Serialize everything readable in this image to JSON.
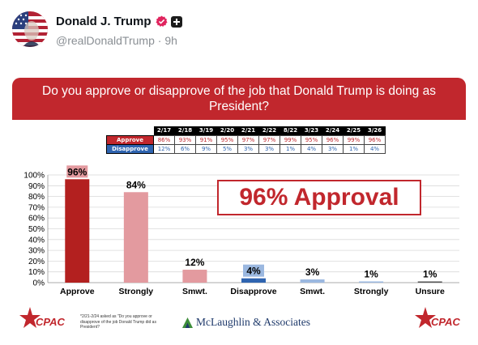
{
  "post": {
    "display_name": "Donald J. Trump",
    "handle": "@realDonaldTrump",
    "separator": "·",
    "time": "9h"
  },
  "poll": {
    "question": "Do you approve or disapprove of the job that Donald Trump is doing as President?",
    "callout": "96% Approval",
    "footnote": "*2/21-2/24 asked as \"Do you approve or disapprove of the job Donald Trump did as President?",
    "pollster": "McLaughlin & Associates",
    "logo_text": "CPAC",
    "table": {
      "dates": [
        "2/17",
        "2/18",
        "3/19",
        "2/20",
        "2/21",
        "2/22",
        "8/22",
        "3/23",
        "2/24",
        "2/25",
        "3/26"
      ],
      "rows": [
        {
          "label": "Approve",
          "values": [
            "86%",
            "93%",
            "91%",
            "95%",
            "97%",
            "97%",
            "99%",
            "95%",
            "96%",
            "99%",
            "96%"
          ]
        },
        {
          "label": "Disapprove",
          "values": [
            "12%",
            "6%",
            "9%",
            "5%",
            "3%",
            "3%",
            "1%",
            "4%",
            "3%",
            "1%",
            "4%"
          ]
        }
      ]
    }
  },
  "chart_data": {
    "type": "bar",
    "title": "",
    "xlabel": "",
    "ylabel": "",
    "ylim": [
      0,
      100
    ],
    "y_ticks": [
      "0%",
      "10%",
      "20%",
      "30%",
      "40%",
      "50%",
      "60%",
      "70%",
      "80%",
      "90%",
      "100%"
    ],
    "grid": true,
    "categories": [
      "Approve",
      "Strongly",
      "Smwt.",
      "Disapprove",
      "Smwt.",
      "Strongly",
      "Unsure"
    ],
    "values": [
      96,
      84,
      12,
      4,
      3,
      1,
      1
    ],
    "value_labels": [
      "96%",
      "84%",
      "12%",
      "4%",
      "3%",
      "1%",
      "1%"
    ],
    "bar_colors": [
      "#b3201f",
      "#e39a9f",
      "#e39a9f",
      "#2f64b0",
      "#9bb8e0",
      "#9bb8e0",
      "#555555"
    ],
    "label_highlight": [
      "#e39a9f",
      "",
      "",
      "#9bb8e0",
      "",
      "",
      ""
    ]
  },
  "colors": {
    "accent_red": "#c1272d",
    "accent_blue": "#2f64b0",
    "handle_grey": "#8a8f94"
  }
}
